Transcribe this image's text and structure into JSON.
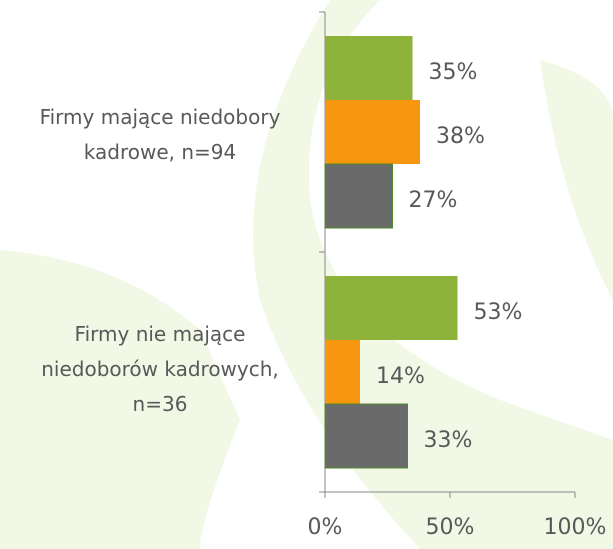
{
  "chart_data": {
    "type": "bar",
    "orientation": "horizontal",
    "categories": [
      "Firmy mające niedobory kadrowe, n=94",
      "Firmy nie mające niedoborów kadrowych, n=36"
    ],
    "series": [
      {
        "color": "#8db33a",
        "values": [
          35,
          53
        ],
        "value_labels": [
          "35%",
          "53%"
        ]
      },
      {
        "color": "#f7960f",
        "values": [
          38,
          14
        ],
        "value_labels": [
          "38%",
          "14%"
        ]
      },
      {
        "color": "#6a6a6a",
        "values": [
          27,
          33
        ],
        "value_labels": [
          "27%",
          "33%"
        ]
      }
    ],
    "xlim": [
      0,
      100
    ],
    "xticks": [
      {
        "value": 0,
        "label": "0%"
      },
      {
        "value": 50,
        "label": "50%"
      },
      {
        "value": 100,
        "label": "100%"
      }
    ],
    "grid": false
  }
}
